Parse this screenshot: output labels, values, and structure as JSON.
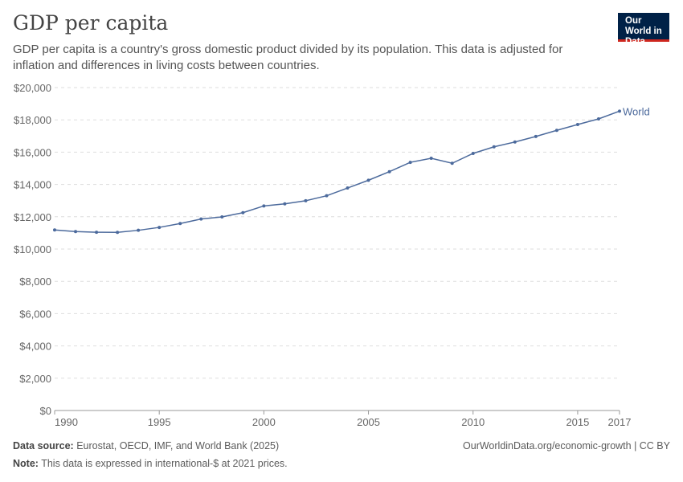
{
  "header": {
    "title": "GDP per capita",
    "subtitle": "GDP per capita is a country's gross domestic product divided by its population. This data is adjusted for inflation and differences in living costs between countries.",
    "logo": "Our World in Data"
  },
  "footer": {
    "source_label": "Data source:",
    "source": "Eurostat, OECD, IMF, and World Bank (2025)",
    "url": "OurWorldinData.org/economic-growth | CC BY",
    "note_label": "Note:",
    "note": "This data is expressed in international-$ at 2021 prices."
  },
  "chart_data": {
    "type": "line",
    "title": "GDP per capita",
    "ylim": [
      0,
      20000
    ],
    "xlim": [
      1990,
      2017
    ],
    "grid": "horizontal dashed",
    "y_ticks": [
      "$0",
      "$2,000",
      "$4,000",
      "$6,000",
      "$8,000",
      "$10,000",
      "$12,000",
      "$14,000",
      "$16,000",
      "$18,000",
      "$20,000"
    ],
    "x_ticks": [
      "1990",
      "1995",
      "2000",
      "2005",
      "2010",
      "2015",
      "2017"
    ],
    "series": [
      {
        "name": "World",
        "color": "#4c6a9c",
        "x": [
          1990,
          1991,
          1992,
          1993,
          1994,
          1995,
          1996,
          1997,
          1998,
          1999,
          2000,
          2001,
          2002,
          2003,
          2004,
          2005,
          2006,
          2007,
          2008,
          2009,
          2010,
          2011,
          2012,
          2013,
          2014,
          2015,
          2016,
          2017
        ],
        "values": [
          11180,
          11080,
          11040,
          11030,
          11160,
          11340,
          11580,
          11860,
          11990,
          12250,
          12670,
          12800,
          12990,
          13300,
          13780,
          14260,
          14790,
          15370,
          15620,
          15310,
          15920,
          16330,
          16630,
          16970,
          17350,
          17710,
          18060,
          18540
        ]
      }
    ]
  }
}
